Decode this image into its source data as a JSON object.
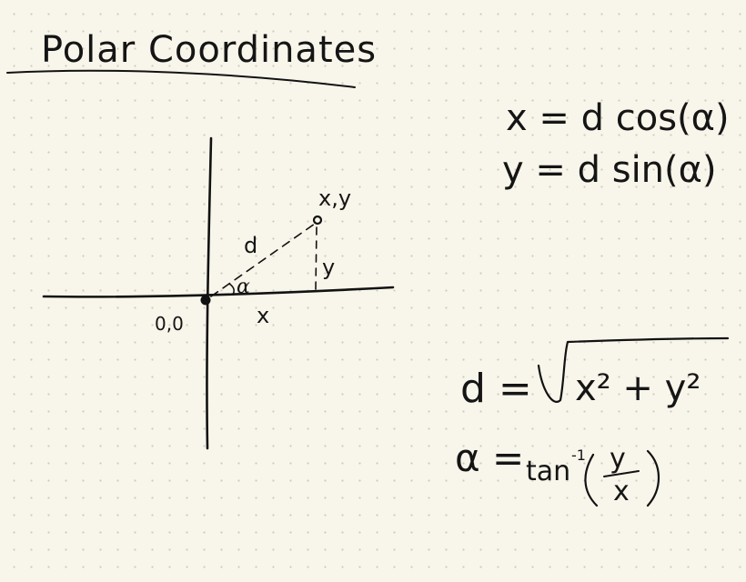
{
  "title": "Polar Coordinates",
  "diagram": {
    "point_label": "x,y",
    "distance_label": "d",
    "angle_label": "α",
    "x_segment_label": "x",
    "y_segment_label": "y",
    "origin_label": "0,0"
  },
  "equations": {
    "x_eq": "x = d cos(α)",
    "y_eq": "y = d sin(α)",
    "d_lhs": "d =",
    "d_radicand": "x² + y²",
    "alpha_lhs": "α =",
    "alpha_fn": "tan",
    "alpha_exp": "-1",
    "alpha_num": "y",
    "alpha_den": "x"
  }
}
